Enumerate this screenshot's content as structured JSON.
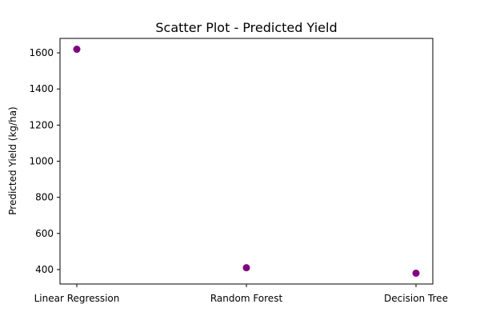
{
  "chart_data": {
    "type": "scatter",
    "title": "Scatter Plot - Predicted Yield",
    "xlabel": "",
    "ylabel": "Predicted Yield (kg/ha)",
    "categories": [
      "Linear Regression",
      "Random Forest",
      "Decision Tree"
    ],
    "values": [
      1620,
      410,
      380
    ],
    "yticks": [
      400,
      600,
      800,
      1000,
      1200,
      1400,
      1600
    ],
    "ylim": [
      320,
      1680
    ],
    "grid": false,
    "legend": "none",
    "marker_color": "#800080"
  }
}
